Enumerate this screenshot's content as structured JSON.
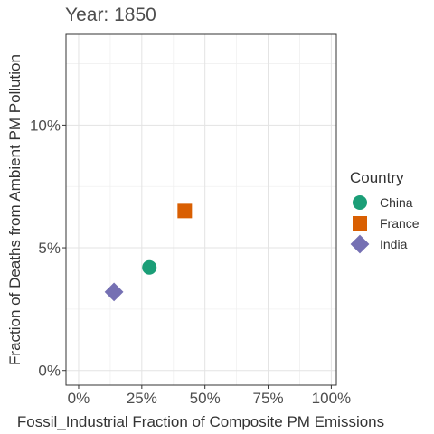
{
  "chart_data": {
    "type": "scatter",
    "title": "Year: 1850",
    "xlabel": "Fossil_Industrial Fraction of Composite PM Emissions",
    "ylabel": "Fraction of Deaths from Ambient PM Pollution",
    "xlim": [
      -0.05,
      1.02
    ],
    "ylim": [
      -0.006,
      0.137
    ],
    "x_ticks": [
      0,
      0.25,
      0.5,
      0.75,
      1.0
    ],
    "x_tick_labels": [
      "0%",
      "25%",
      "50%",
      "75%",
      "100%"
    ],
    "y_ticks": [
      0,
      0.05,
      0.1
    ],
    "y_tick_labels": [
      "0%",
      "5%",
      "10%"
    ],
    "grid": true,
    "legend": {
      "title": "Country",
      "position": "right"
    },
    "series": [
      {
        "name": "China",
        "shape": "circle",
        "color": "#1b9e77",
        "points": [
          {
            "x": 0.28,
            "y": 0.042
          }
        ]
      },
      {
        "name": "France",
        "shape": "square",
        "color": "#d95f02",
        "points": [
          {
            "x": 0.42,
            "y": 0.065
          }
        ]
      },
      {
        "name": "India",
        "shape": "diamond",
        "color": "#7570b3",
        "points": [
          {
            "x": 0.14,
            "y": 0.032
          }
        ]
      }
    ]
  }
}
